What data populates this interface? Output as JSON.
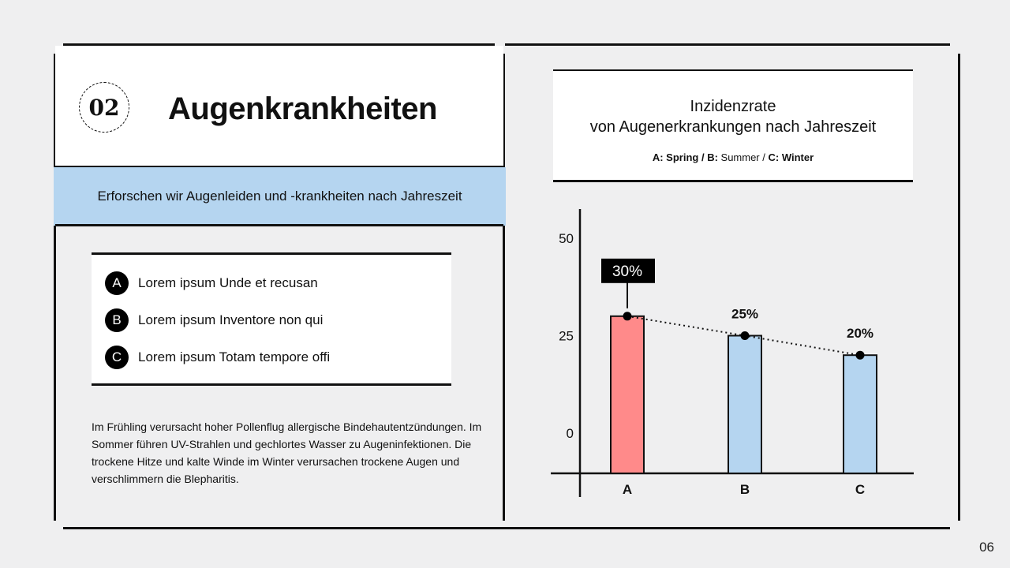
{
  "slide": {
    "number_badge": "02",
    "title": "Augenkrankheiten",
    "subtitle": "Erforschen wir Augenleiden und -krankheiten nach Jahreszeit",
    "page_number": "06"
  },
  "list": {
    "items": [
      {
        "badge": "A",
        "text": "Lorem ipsum Unde et recusan"
      },
      {
        "badge": "B",
        "text": "Lorem ipsum Inventore non qui"
      },
      {
        "badge": "C",
        "text": "Lorem ipsum Totam tempore offi"
      }
    ]
  },
  "body_text": "Im Frühling verursacht hoher Pollenflug allergische Bindehautentzündungen. Im Sommer führen UV-Strahlen und gechlortes Wasser zu Augeninfektionen. Die trockene Hitze und kalte Winde im Winter verursachen trockene Augen und verschlimmern die Blepharitis.",
  "chart_title": {
    "line1": "Inzidenzrate",
    "line2": "von Augenerkrankungen nach Jahreszeit",
    "legend_a_key": "A: Spring",
    "legend_sep1": " / ",
    "legend_b_key": "B:",
    "legend_b_val": " Summer",
    "legend_sep2": " / ",
    "legend_c_key": "C: Winter"
  },
  "colors": {
    "highlight_bar": "#ff8a8a",
    "bar": "#b5d5f0",
    "accent_blue": "#b5d5f0"
  },
  "chart_data": {
    "type": "bar",
    "categories": [
      "A",
      "B",
      "C"
    ],
    "values": [
      30,
      25,
      20
    ],
    "value_labels": [
      "30%",
      "25%",
      "20%"
    ],
    "highlight_index": 0,
    "ylim": [
      0,
      50
    ],
    "yticks": [
      0,
      25,
      50
    ],
    "trend_line": true,
    "grid": false
  }
}
